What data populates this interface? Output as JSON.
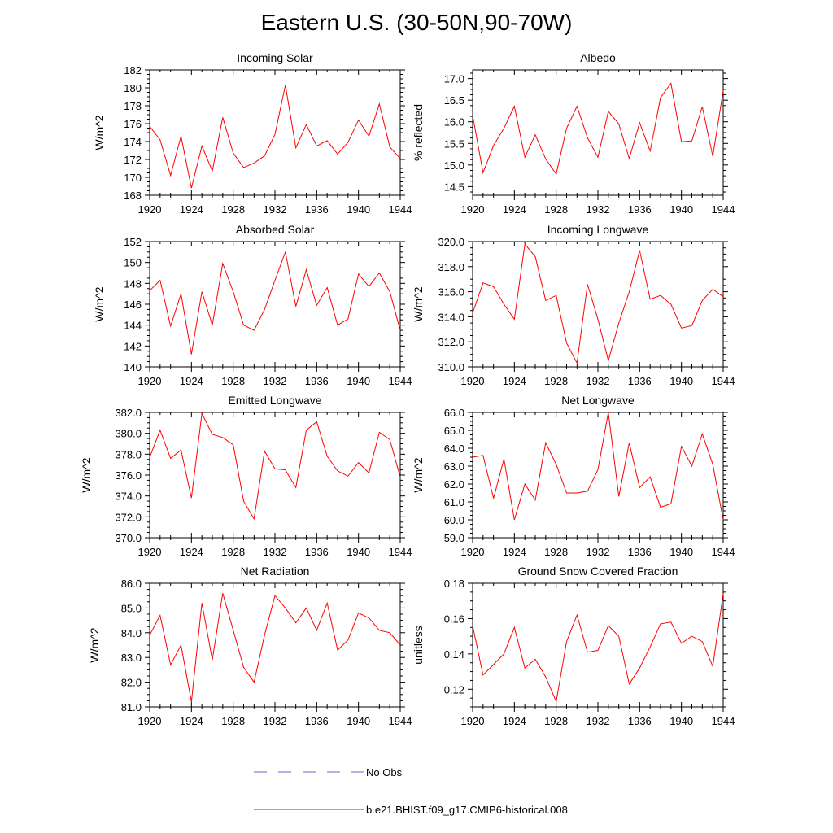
{
  "figure": {
    "title": "Eastern U.S. (30-50N,90-70W)"
  },
  "legend": {
    "entries": [
      {
        "label": "No Obs",
        "style": "dashed",
        "color": "#5b6bd1"
      },
      {
        "label": "b.e21.BHIST.f09_g17.CMIP6-historical.008",
        "style": "solid",
        "color": "#ff0000"
      }
    ]
  },
  "chart_data": [
    {
      "type": "line",
      "title": "Incoming Solar",
      "xlabel": "",
      "ylabel": "W/m^2",
      "xlim": [
        1920,
        1944
      ],
      "ylim": [
        168,
        182
      ],
      "xticks": [
        1920,
        1924,
        1928,
        1932,
        1936,
        1940,
        1944
      ],
      "xtick_labels": [
        "1920",
        "1924",
        "1928",
        "1932",
        "1936",
        "1940",
        "1944"
      ],
      "yticks": [
        168,
        170,
        172,
        174,
        176,
        178,
        180,
        182
      ],
      "ytick_labels": [
        "168",
        "170",
        "172",
        "174",
        "176",
        "178",
        "180",
        "182"
      ],
      "series": [
        {
          "name": "b.e21.BHIST.f09_g17.CMIP6-historical.008",
          "color": "#ff0000",
          "x": [
            1920,
            1921,
            1922,
            1923,
            1924,
            1925,
            1926,
            1927,
            1928,
            1929,
            1930,
            1931,
            1932,
            1933,
            1934,
            1935,
            1936,
            1937,
            1938,
            1939,
            1940,
            1941,
            1942,
            1943,
            1944
          ],
          "y": [
            175.7,
            174.2,
            170.2,
            174.6,
            168.8,
            173.5,
            170.7,
            176.7,
            172.7,
            171.1,
            171.6,
            172.4,
            174.8,
            180.3,
            173.3,
            175.9,
            173.5,
            174.1,
            172.6,
            173.9,
            176.4,
            174.6,
            178.2,
            173.4,
            172.1
          ]
        }
      ]
    },
    {
      "type": "line",
      "title": "Albedo",
      "xlabel": "",
      "ylabel": "% reflected",
      "xlim": [
        1920,
        1944
      ],
      "ylim": [
        14.3,
        17.2
      ],
      "xticks": [
        1920,
        1924,
        1928,
        1932,
        1936,
        1940,
        1944
      ],
      "xtick_labels": [
        "1920",
        "1924",
        "1928",
        "1932",
        "1936",
        "1940",
        "1944"
      ],
      "yticks": [
        14.5,
        15.0,
        15.5,
        16.0,
        16.5,
        17.0
      ],
      "ytick_labels": [
        "14.5",
        "15.0",
        "15.5",
        "16.0",
        "16.5",
        "17.0"
      ],
      "series": [
        {
          "name": "b.e21.BHIST.f09_g17.CMIP6-historical.008",
          "color": "#ff0000",
          "x": [
            1920,
            1921,
            1922,
            1923,
            1924,
            1925,
            1926,
            1927,
            1928,
            1929,
            1930,
            1931,
            1932,
            1933,
            1934,
            1935,
            1936,
            1937,
            1938,
            1939,
            1940,
            1941,
            1942,
            1943,
            1944
          ],
          "y": [
            16.15,
            14.82,
            15.45,
            15.85,
            16.36,
            15.18,
            15.7,
            15.14,
            14.79,
            15.85,
            16.36,
            15.63,
            15.18,
            16.24,
            15.95,
            15.15,
            15.98,
            15.32,
            16.56,
            16.89,
            15.54,
            15.56,
            16.35,
            15.2,
            16.72
          ]
        }
      ]
    },
    {
      "type": "line",
      "title": "Absorbed Solar",
      "xlabel": "",
      "ylabel": "W/m^2",
      "xlim": [
        1920,
        1944
      ],
      "ylim": [
        140,
        152
      ],
      "xticks": [
        1920,
        1924,
        1928,
        1932,
        1936,
        1940,
        1944
      ],
      "xtick_labels": [
        "1920",
        "1924",
        "1928",
        "1932",
        "1936",
        "1940",
        "1944"
      ],
      "yticks": [
        140,
        142,
        144,
        146,
        148,
        150,
        152
      ],
      "ytick_labels": [
        "140",
        "142",
        "144",
        "146",
        "148",
        "150",
        "152"
      ],
      "series": [
        {
          "name": "b.e21.BHIST.f09_g17.CMIP6-historical.008",
          "color": "#ff0000",
          "x": [
            1920,
            1921,
            1922,
            1923,
            1924,
            1925,
            1926,
            1927,
            1928,
            1929,
            1930,
            1931,
            1932,
            1933,
            1934,
            1935,
            1936,
            1937,
            1938,
            1939,
            1940,
            1941,
            1942,
            1943,
            1944
          ],
          "y": [
            147.3,
            148.3,
            143.9,
            147.0,
            141.2,
            147.2,
            144.0,
            149.9,
            147.2,
            144.0,
            143.5,
            145.5,
            148.3,
            151.0,
            145.8,
            149.3,
            145.9,
            147.6,
            144.0,
            144.6,
            148.9,
            147.7,
            149.0,
            147.2,
            143.5
          ]
        }
      ]
    },
    {
      "type": "line",
      "title": "Incoming Longwave",
      "xlabel": "",
      "ylabel": "W/m^2",
      "xlim": [
        1920,
        1944
      ],
      "ylim": [
        310,
        320
      ],
      "xticks": [
        1920,
        1924,
        1928,
        1932,
        1936,
        1940,
        1944
      ],
      "xtick_labels": [
        "1920",
        "1924",
        "1928",
        "1932",
        "1936",
        "1940",
        "1944"
      ],
      "yticks": [
        310,
        312,
        314,
        316,
        318,
        320
      ],
      "ytick_labels": [
        "310.0",
        "312.0",
        "314.0",
        "316.0",
        "318.0",
        "320.0"
      ],
      "series": [
        {
          "name": "b.e21.BHIST.f09_g17.CMIP6-historical.008",
          "color": "#ff0000",
          "x": [
            1920,
            1921,
            1922,
            1923,
            1924,
            1925,
            1926,
            1927,
            1928,
            1929,
            1930,
            1931,
            1932,
            1933,
            1934,
            1935,
            1936,
            1937,
            1938,
            1939,
            1940,
            1941,
            1942,
            1943,
            1944
          ],
          "y": [
            314.3,
            316.7,
            316.4,
            315.0,
            313.8,
            319.8,
            318.8,
            315.3,
            315.7,
            311.9,
            310.3,
            316.6,
            313.8,
            310.5,
            313.5,
            316.0,
            319.3,
            315.4,
            315.7,
            315.0,
            313.1,
            313.3,
            315.3,
            316.2,
            315.6
          ]
        }
      ]
    },
    {
      "type": "line",
      "title": "Emitted Longwave",
      "xlabel": "",
      "ylabel": "W/m^2",
      "xlim": [
        1920,
        1944
      ],
      "ylim": [
        370,
        382
      ],
      "xticks": [
        1920,
        1924,
        1928,
        1932,
        1936,
        1940,
        1944
      ],
      "xtick_labels": [
        "1920",
        "1924",
        "1928",
        "1932",
        "1936",
        "1940",
        "1944"
      ],
      "yticks": [
        370,
        372,
        374,
        376,
        378,
        380,
        382
      ],
      "ytick_labels": [
        "370.0",
        "372.0",
        "374.0",
        "376.0",
        "378.0",
        "380.0",
        "382.0"
      ],
      "series": [
        {
          "name": "b.e21.BHIST.f09_g17.CMIP6-historical.008",
          "color": "#ff0000",
          "x": [
            1920,
            1921,
            1922,
            1923,
            1924,
            1925,
            1926,
            1927,
            1928,
            1929,
            1930,
            1931,
            1932,
            1933,
            1934,
            1935,
            1936,
            1937,
            1938,
            1939,
            1940,
            1941,
            1942,
            1943,
            1944
          ],
          "y": [
            377.7,
            380.3,
            377.6,
            378.4,
            373.8,
            381.9,
            379.9,
            379.6,
            378.9,
            373.5,
            371.8,
            378.3,
            376.6,
            376.5,
            374.8,
            380.3,
            381.1,
            377.8,
            376.4,
            375.9,
            377.2,
            376.2,
            380.1,
            379.4,
            375.8
          ]
        }
      ]
    },
    {
      "type": "line",
      "title": "Net Longwave",
      "xlabel": "",
      "ylabel": "W/m^2",
      "xlim": [
        1920,
        1944
      ],
      "ylim": [
        59,
        66
      ],
      "xticks": [
        1920,
        1924,
        1928,
        1932,
        1936,
        1940,
        1944
      ],
      "xtick_labels": [
        "1920",
        "1924",
        "1928",
        "1932",
        "1936",
        "1940",
        "1944"
      ],
      "yticks": [
        59,
        60,
        61,
        62,
        63,
        64,
        65,
        66
      ],
      "ytick_labels": [
        "59.0",
        "60.0",
        "61.0",
        "62.0",
        "63.0",
        "64.0",
        "65.0",
        "66.0"
      ],
      "series": [
        {
          "name": "b.e21.BHIST.f09_g17.CMIP6-historical.008",
          "color": "#ff0000",
          "x": [
            1920,
            1921,
            1922,
            1923,
            1924,
            1925,
            1926,
            1927,
            1928,
            1929,
            1930,
            1931,
            1932,
            1933,
            1934,
            1935,
            1936,
            1937,
            1938,
            1939,
            1940,
            1941,
            1942,
            1943,
            1944
          ],
          "y": [
            63.5,
            63.6,
            61.2,
            63.4,
            60.0,
            62.0,
            61.1,
            64.3,
            63.1,
            61.5,
            61.5,
            61.6,
            62.8,
            66.0,
            61.3,
            64.3,
            61.8,
            62.4,
            60.7,
            60.9,
            64.1,
            63.0,
            64.8,
            63.1,
            60.0
          ]
        }
      ]
    },
    {
      "type": "line",
      "title": "Net Radiation",
      "xlabel": "",
      "ylabel": "W/m^2",
      "xlim": [
        1920,
        1944
      ],
      "ylim": [
        81,
        86
      ],
      "xticks": [
        1920,
        1924,
        1928,
        1932,
        1936,
        1940,
        1944
      ],
      "xtick_labels": [
        "1920",
        "1924",
        "1928",
        "1932",
        "1936",
        "1940",
        "1944"
      ],
      "yticks": [
        81,
        82,
        83,
        84,
        85,
        86
      ],
      "ytick_labels": [
        "81.0",
        "82.0",
        "83.0",
        "84.0",
        "85.0",
        "86.0"
      ],
      "series": [
        {
          "name": "b.e21.BHIST.f09_g17.CMIP6-historical.008",
          "color": "#ff0000",
          "x": [
            1920,
            1921,
            1922,
            1923,
            1924,
            1925,
            1926,
            1927,
            1928,
            1929,
            1930,
            1931,
            1932,
            1933,
            1934,
            1935,
            1936,
            1937,
            1938,
            1939,
            1940,
            1941,
            1942,
            1943,
            1944
          ],
          "y": [
            83.9,
            84.7,
            82.7,
            83.5,
            81.2,
            85.2,
            82.9,
            85.6,
            84.1,
            82.6,
            82.0,
            83.9,
            85.5,
            85.0,
            84.4,
            85.0,
            84.1,
            85.2,
            83.3,
            83.7,
            84.8,
            84.6,
            84.1,
            84.0,
            83.5
          ]
        }
      ]
    },
    {
      "type": "line",
      "title": "Ground Snow Covered Fraction",
      "xlabel": "",
      "ylabel": "unitless",
      "xlim": [
        1920,
        1944
      ],
      "ylim": [
        0.11,
        0.18
      ],
      "xticks": [
        1920,
        1924,
        1928,
        1932,
        1936,
        1940,
        1944
      ],
      "xtick_labels": [
        "1920",
        "1924",
        "1928",
        "1932",
        "1936",
        "1940",
        "1944"
      ],
      "yticks": [
        0.12,
        0.14,
        0.16,
        0.18
      ],
      "ytick_labels": [
        "0.12",
        "0.14",
        "0.16",
        "0.18"
      ],
      "series": [
        {
          "name": "b.e21.BHIST.f09_g17.CMIP6-historical.008",
          "color": "#ff0000",
          "x": [
            1920,
            1921,
            1922,
            1923,
            1924,
            1925,
            1926,
            1927,
            1928,
            1929,
            1930,
            1931,
            1932,
            1933,
            1934,
            1935,
            1936,
            1937,
            1938,
            1939,
            1940,
            1941,
            1942,
            1943,
            1944
          ],
          "y": [
            0.156,
            0.128,
            0.134,
            0.14,
            0.155,
            0.132,
            0.137,
            0.127,
            0.113,
            0.147,
            0.162,
            0.141,
            0.142,
            0.156,
            0.15,
            0.123,
            0.132,
            0.144,
            0.157,
            0.158,
            0.146,
            0.15,
            0.147,
            0.133,
            0.174
          ]
        }
      ]
    }
  ]
}
